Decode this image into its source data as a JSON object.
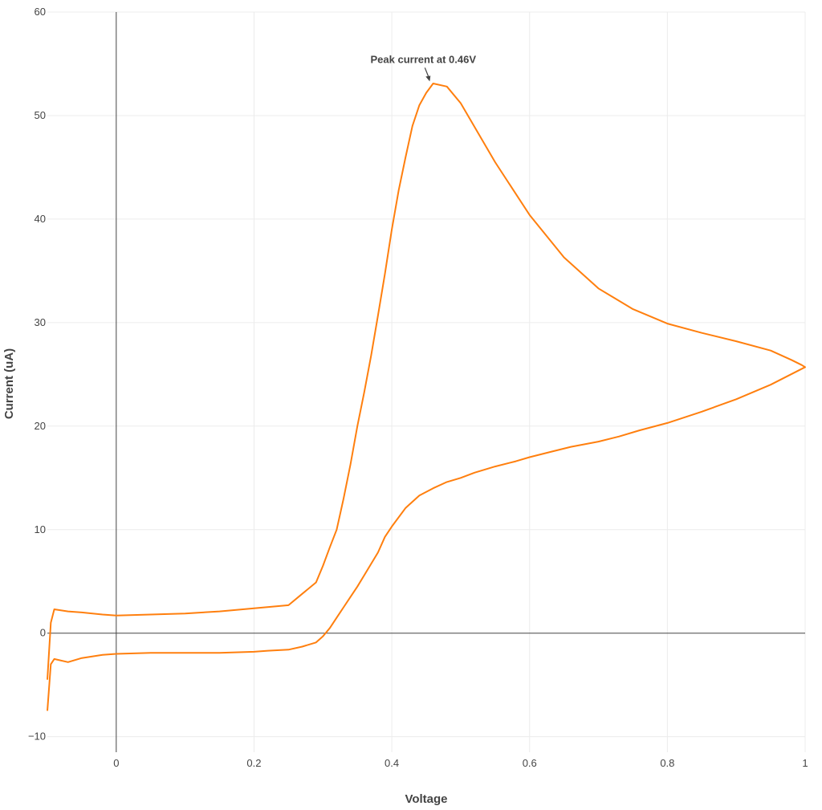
{
  "chart_data": {
    "type": "line",
    "title": "",
    "xlabel": "Voltage",
    "ylabel": "Current (uA)",
    "xlim": [
      -0.1,
      1.0
    ],
    "ylim": [
      -11.5,
      60
    ],
    "x_ticks": [
      0,
      0.2,
      0.4,
      0.6,
      0.8,
      1
    ],
    "x_tick_labels": [
      "0",
      "0.2",
      "0.4",
      "0.6",
      "0.8",
      "1"
    ],
    "y_ticks": [
      -10,
      0,
      10,
      20,
      30,
      40,
      50,
      60
    ],
    "y_tick_labels": [
      "−10",
      "0",
      "10",
      "20",
      "30",
      "40",
      "50",
      "60"
    ],
    "grid": true,
    "zero_lines": true,
    "legend": "none",
    "series": [
      {
        "color": "#ff7f0e",
        "x": [
          -0.1,
          -0.095,
          -0.09,
          -0.07,
          -0.05,
          -0.02,
          0.0,
          0.05,
          0.1,
          0.15,
          0.2,
          0.22,
          0.25,
          0.27,
          0.29,
          0.3,
          0.31,
          0.32,
          0.33,
          0.34,
          0.35,
          0.36,
          0.38,
          0.39,
          0.4,
          0.42,
          0.44,
          0.46,
          0.48,
          0.5,
          0.52,
          0.55,
          0.58,
          0.6,
          0.63,
          0.66,
          0.7,
          0.73,
          0.76,
          0.8,
          0.85,
          0.9,
          0.95,
          1.0,
          0.995,
          0.98,
          0.95,
          0.9,
          0.85,
          0.8,
          0.75,
          0.7,
          0.65,
          0.6,
          0.55,
          0.5,
          0.48,
          0.46,
          0.45,
          0.44,
          0.43,
          0.42,
          0.41,
          0.4,
          0.39,
          0.38,
          0.37,
          0.36,
          0.35,
          0.34,
          0.33,
          0.32,
          0.31,
          0.3,
          0.29,
          0.27,
          0.25,
          0.2,
          0.15,
          0.1,
          0.05,
          0.0,
          -0.02,
          -0.05,
          -0.07,
          -0.09,
          -0.095,
          -0.1
        ],
        "y": [
          -7.5,
          -3.0,
          -2.5,
          -2.8,
          -2.4,
          -2.1,
          -2.0,
          -1.9,
          -1.9,
          -1.9,
          -1.8,
          -1.7,
          -1.6,
          -1.3,
          -0.9,
          -0.3,
          0.5,
          1.5,
          2.5,
          3.5,
          4.5,
          5.6,
          7.8,
          9.3,
          10.3,
          12.1,
          13.3,
          14.0,
          14.6,
          15.0,
          15.5,
          16.1,
          16.6,
          17.0,
          17.5,
          18.0,
          18.5,
          19.0,
          19.6,
          20.3,
          21.4,
          22.6,
          24.0,
          25.7,
          25.9,
          26.4,
          27.3,
          28.2,
          29.0,
          29.9,
          31.3,
          33.3,
          36.3,
          40.4,
          45.5,
          51.2,
          52.8,
          53.1,
          52.2,
          51.0,
          49.0,
          46.0,
          42.8,
          39.0,
          34.7,
          30.7,
          26.8,
          23.3,
          20.0,
          16.3,
          13.0,
          10.0,
          8.3,
          6.5,
          4.9,
          3.8,
          2.7,
          2.4,
          2.1,
          1.9,
          1.8,
          1.7,
          1.8,
          2.0,
          2.1,
          2.3,
          1.0,
          -4.5
        ]
      }
    ],
    "annotations": [
      {
        "text": "Peak current at 0.46V",
        "x": 0.455,
        "y": 53.3
      }
    ]
  }
}
